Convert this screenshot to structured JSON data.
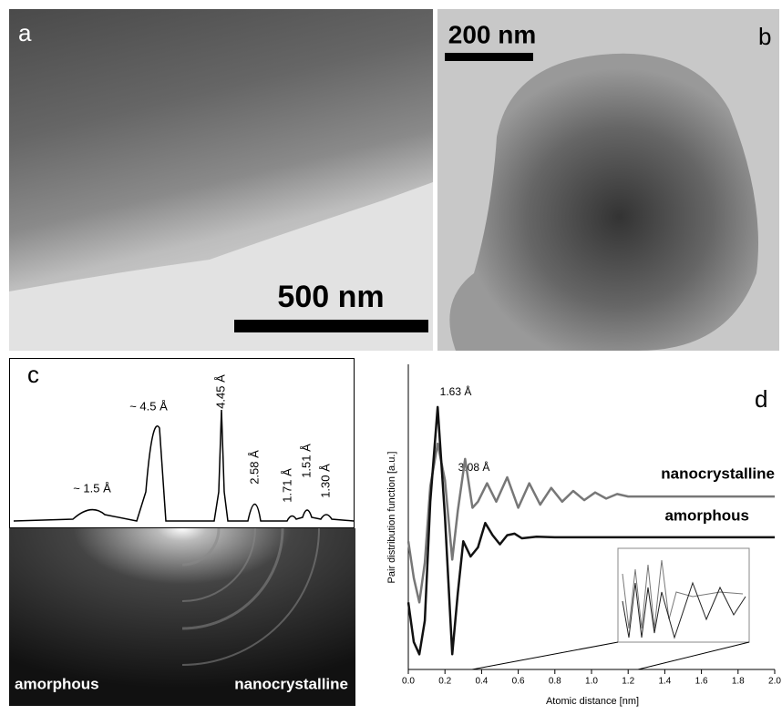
{
  "panels": {
    "a": {
      "label": "a",
      "scale_bar": "500 nm"
    },
    "b": {
      "label": "b",
      "scale_bar": "200 nm"
    },
    "c": {
      "label": "c",
      "peak_labels": [
        "~ 1.5 Å",
        "~ 4.5 Å",
        "4.45 Å",
        "2.58 Å",
        "1.71 Å",
        "1.51 Å",
        "1.30 Å"
      ],
      "left_label": "amorphous",
      "right_label": "nanocrystalline"
    }
  },
  "chart_data": {
    "type": "line",
    "panel_label": "d",
    "xlabel": "Atomic distance [nm]",
    "ylabel": "Pair distribution function [a.u.]",
    "annotations": [
      "1.63 Å",
      "3.08 Å"
    ],
    "xlim": [
      0,
      2.0
    ],
    "ylim": [
      0,
      10
    ],
    "xticks": [
      {
        "value": 0,
        "label": "0.0"
      },
      0.2,
      0.4,
      0.6,
      0.8,
      {
        "value": 1,
        "label": "1.0"
      },
      1.2,
      1.4,
      1.6,
      1.8,
      {
        "value": 2,
        "label": "2.0"
      }
    ],
    "series": [
      {
        "name": "nanocrystalline",
        "color": "#777777",
        "x": [
          0,
          0.03,
          0.06,
          0.09,
          0.12,
          0.16,
          0.2,
          0.24,
          0.27,
          0.31,
          0.35,
          0.38,
          0.43,
          0.48,
          0.54,
          0.6,
          0.66,
          0.72,
          0.78,
          0.84,
          0.9,
          0.96,
          1.02,
          1.08,
          1.14,
          1.2,
          1.5,
          2.0
        ],
        "values": [
          4.2,
          3.0,
          2.2,
          3.5,
          6.0,
          7.4,
          6.2,
          3.6,
          5.2,
          6.9,
          5.3,
          5.5,
          6.1,
          5.5,
          6.3,
          5.3,
          6.1,
          5.4,
          5.95,
          5.5,
          5.85,
          5.55,
          5.8,
          5.6,
          5.75,
          5.67,
          5.67,
          5.67
        ]
      },
      {
        "name": "amorphous",
        "color": "#111111",
        "x": [
          0,
          0.03,
          0.06,
          0.09,
          0.12,
          0.16,
          0.2,
          0.24,
          0.27,
          0.3,
          0.34,
          0.38,
          0.42,
          0.46,
          0.5,
          0.54,
          0.58,
          0.62,
          0.7,
          0.8,
          1.0,
          1.5,
          2.0
        ],
        "values": [
          2.2,
          0.9,
          0.5,
          1.6,
          5.5,
          8.6,
          5.0,
          0.5,
          2.5,
          4.2,
          3.7,
          4.0,
          4.8,
          4.4,
          4.1,
          4.4,
          4.45,
          4.3,
          4.35,
          4.33,
          4.33,
          4.33,
          4.33
        ]
      }
    ]
  }
}
